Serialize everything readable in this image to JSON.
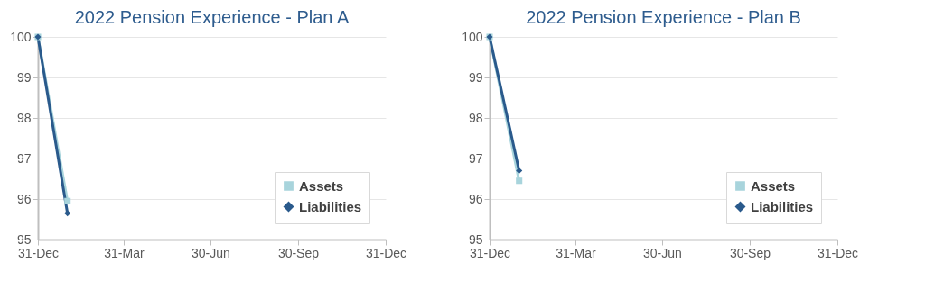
{
  "chart_data": [
    {
      "type": "line",
      "title": "2022 Pension Experience - Plan A",
      "x": [
        "2021-12-31",
        "2022-01-31"
      ],
      "series": [
        {
          "name": "Assets",
          "color": "#a8d4dc",
          "marker": "square",
          "values": [
            100,
            95.95
          ]
        },
        {
          "name": "Liabilities",
          "color": "#2a5a8c",
          "marker": "diamond",
          "values": [
            100,
            95.65
          ]
        }
      ],
      "xlim": [
        "2021-12-31",
        "2022-12-31"
      ],
      "xticks": [
        {
          "value": "2021-12-31",
          "label": "31-Dec"
        },
        {
          "value": "2022-03-31",
          "label": "31-Mar"
        },
        {
          "value": "2022-06-30",
          "label": "30-Jun"
        },
        {
          "value": "2022-09-30",
          "label": "30-Sep"
        },
        {
          "value": "2022-12-31",
          "label": "31-Dec"
        }
      ],
      "ylim": [
        95,
        100
      ],
      "yticks": [
        95,
        96,
        97,
        98,
        99,
        100
      ],
      "grid": "y",
      "legend": "bottom right",
      "line_style": "solid"
    },
    {
      "type": "line",
      "title": "2022 Pension Experience - Plan B",
      "x": [
        "2021-12-31",
        "2022-01-31"
      ],
      "series": [
        {
          "name": "Assets",
          "color": "#a8d4dc",
          "marker": "square",
          "values": [
            100,
            96.45
          ]
        },
        {
          "name": "Liabilities",
          "color": "#2a5a8c",
          "marker": "diamond",
          "values": [
            100,
            96.7
          ]
        }
      ],
      "xlim": [
        "2021-12-31",
        "2022-12-31"
      ],
      "xticks": [
        {
          "value": "2021-12-31",
          "label": "31-Dec"
        },
        {
          "value": "2022-03-31",
          "label": "31-Mar"
        },
        {
          "value": "2022-06-30",
          "label": "30-Jun"
        },
        {
          "value": "2022-09-30",
          "label": "30-Sep"
        },
        {
          "value": "2022-12-31",
          "label": "31-Dec"
        }
      ],
      "ylim": [
        95,
        100
      ],
      "yticks": [
        95,
        96,
        97,
        98,
        99,
        100
      ],
      "grid": "y",
      "legend": "bottom right",
      "line_style": "solid"
    }
  ]
}
